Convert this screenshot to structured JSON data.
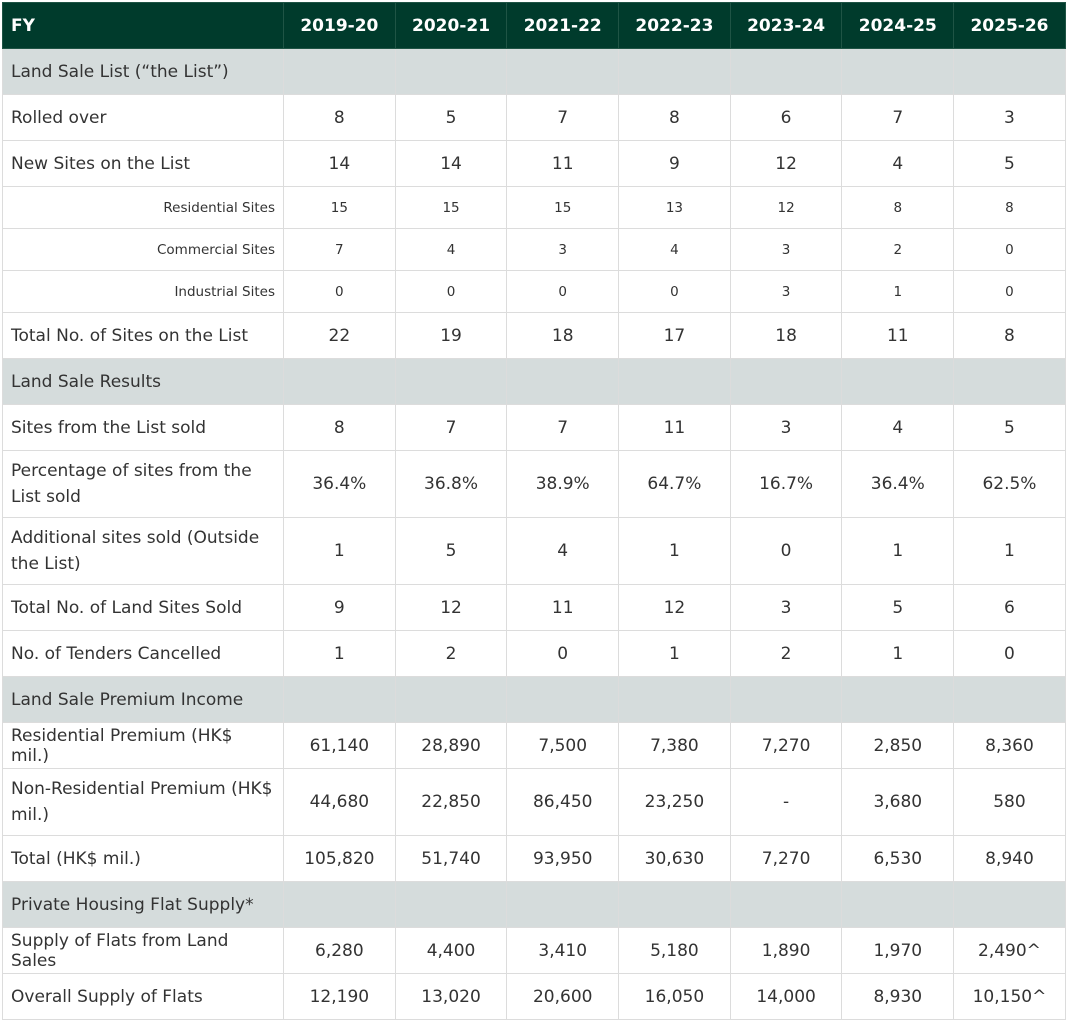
{
  "header": {
    "fy": "FY",
    "years": [
      "2019-20",
      "2020-21",
      "2021-22",
      "2022-23",
      "2023-24",
      "2024-25",
      "2025-26"
    ]
  },
  "rows": [
    {
      "type": "section",
      "label": "Land Sale List (“the List”)"
    },
    {
      "type": "row",
      "label": "Rolled over",
      "values": [
        "8",
        "5",
        "7",
        "8",
        "6",
        "7",
        "3"
      ]
    },
    {
      "type": "row",
      "label": "New Sites on the List",
      "values": [
        "14",
        "14",
        "11",
        "9",
        "12",
        "4",
        "5"
      ]
    },
    {
      "type": "sub",
      "label": "Residential Sites",
      "values": [
        "15",
        "15",
        "15",
        "13",
        "12",
        "8",
        "8"
      ]
    },
    {
      "type": "sub",
      "label": "Commercial Sites",
      "values": [
        "7",
        "4",
        "3",
        "4",
        "3",
        "2",
        "0"
      ]
    },
    {
      "type": "sub",
      "label": "Industrial Sites",
      "values": [
        "0",
        "0",
        "0",
        "0",
        "3",
        "1",
        "0"
      ]
    },
    {
      "type": "row",
      "label": "Total No. of Sites on the List",
      "values": [
        "22",
        "19",
        "18",
        "17",
        "18",
        "11",
        "8"
      ]
    },
    {
      "type": "section",
      "label": "Land Sale Results"
    },
    {
      "type": "row",
      "label": "Sites from the List sold",
      "values": [
        "8",
        "7",
        "7",
        "11",
        "3",
        "4",
        "5"
      ]
    },
    {
      "type": "tall",
      "label": "Percentage of sites from the List sold",
      "values": [
        "36.4%",
        "36.8%",
        "38.9%",
        "64.7%",
        "16.7%",
        "36.4%",
        "62.5%"
      ]
    },
    {
      "type": "tall",
      "label": "Additional sites sold (Outside the List)",
      "values": [
        "1",
        "5",
        "4",
        "1",
        "0",
        "1",
        "1"
      ]
    },
    {
      "type": "row",
      "label": "Total No. of Land Sites Sold",
      "values": [
        "9",
        "12",
        "11",
        "12",
        "3",
        "5",
        "6"
      ]
    },
    {
      "type": "row",
      "label": "No. of Tenders Cancelled",
      "values": [
        "1",
        "2",
        "0",
        "1",
        "2",
        "1",
        "0"
      ]
    },
    {
      "type": "section",
      "label": "Land Sale Premium Income"
    },
    {
      "type": "row",
      "label": "Residential Premium (HK$ mil.)",
      "values": [
        "61,140",
        "28,890",
        "7,500",
        "7,380",
        "7,270",
        "2,850",
        "8,360"
      ]
    },
    {
      "type": "tall",
      "label": "Non-Residential Premium (HK$ mil.)",
      "values": [
        "44,680",
        "22,850",
        "86,450",
        "23,250",
        "-",
        "3,680",
        "580"
      ]
    },
    {
      "type": "row",
      "label": "Total (HK$ mil.)",
      "values": [
        "105,820",
        "51,740",
        "93,950",
        "30,630",
        "7,270",
        "6,530",
        "8,940"
      ]
    },
    {
      "type": "section",
      "label": "Private Housing Flat Supply*"
    },
    {
      "type": "row",
      "label": "Supply of Flats from Land Sales",
      "values": [
        "6,280",
        "4,400",
        "3,410",
        "5,180",
        "1,890",
        "1,970",
        "2,490^"
      ]
    },
    {
      "type": "row",
      "label": "Overall Supply of Flats",
      "values": [
        "12,190",
        "13,020",
        "20,600",
        "16,050",
        "14,000",
        "8,930",
        "10,150^"
      ]
    }
  ]
}
